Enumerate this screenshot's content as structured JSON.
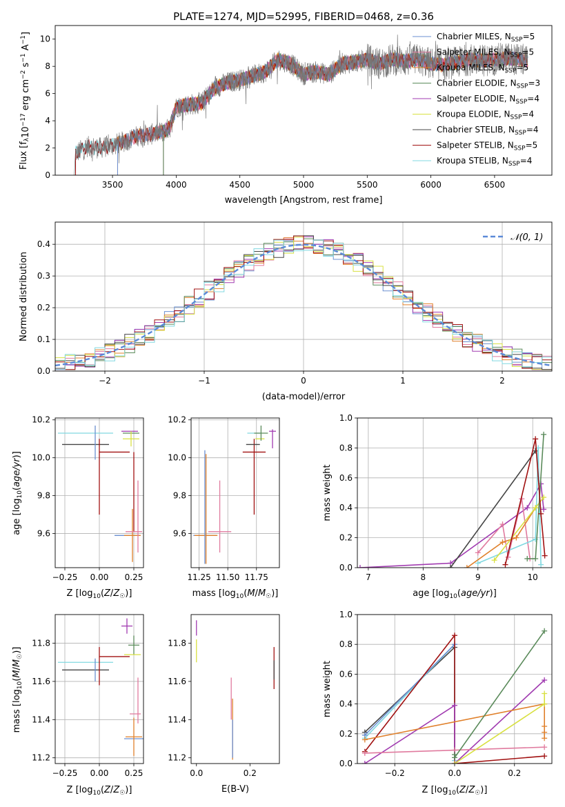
{
  "title": "PLATE=1274, MJD=52995, FIBERID=0468, z=0.36",
  "colors": {
    "chabrier_miles": "#6a8fd0",
    "salpeter_miles": "#e07a9e",
    "kroupa_miles": "#e0802a",
    "chabrier_elodie": "#5a8a5a",
    "salpeter_elodie": "#a03ab0",
    "kroupa_elodie": "#d8e040",
    "chabrier_stelib": "#444444",
    "salpeter_stelib": "#a01010",
    "kroupa_stelib": "#80d8e0",
    "normal": "#5b8ad8"
  },
  "chart_data": [
    {
      "type": "line",
      "panel": "spectrum",
      "xlabel": "wavelength [Angstrom, rest frame]",
      "ylabel": "Flux [f_λ10^-17 erg cm^-2 s^-1 A^-1]",
      "xlim": [
        3050,
        6950
      ],
      "ylim": [
        0,
        11
      ],
      "xticks": [
        3500,
        4000,
        4500,
        5000,
        5500,
        6000,
        6500
      ],
      "yticks": [
        0,
        2,
        4,
        6,
        8,
        10
      ],
      "grid": false,
      "legend_position": "top-right",
      "legend": [
        {
          "label": "Chabrier MILES, N_SSP=5",
          "color_key": "chabrier_miles"
        },
        {
          "label": "Salpeter MILES, N_SSP=5",
          "color_key": "salpeter_miles"
        },
        {
          "label": "Kroupa MILES, N_SSP=5",
          "color_key": "kroupa_miles"
        },
        {
          "label": "Chabrier ELODIE, N_SSP=3",
          "color_key": "chabrier_elodie"
        },
        {
          "label": "Salpeter ELODIE, N_SSP=4",
          "color_key": "salpeter_elodie"
        },
        {
          "label": "Kroupa ELODIE, N_SSP=4",
          "color_key": "kroupa_elodie"
        },
        {
          "label": "Chabrier STELIB, N_SSP=4",
          "color_key": "chabrier_stelib"
        },
        {
          "label": "Salpeter STELIB, N_SSP=5",
          "color_key": "salpeter_stelib"
        },
        {
          "label": "Kroupa STELIB, N_SSP=4",
          "color_key": "kroupa_stelib"
        }
      ],
      "continuum": {
        "x": [
          3200,
          3210,
          3300,
          3400,
          3500,
          3600,
          3700,
          3800,
          3900,
          3950,
          4000,
          4100,
          4200,
          4300,
          4400,
          4500,
          4600,
          4700,
          4800,
          4900,
          5000,
          5100,
          5200,
          5300,
          5400,
          5500,
          5600,
          5700,
          5800,
          5900,
          6000,
          6100,
          6200,
          6300,
          6400,
          6500,
          6600,
          6700,
          6760
        ],
        "y": [
          0,
          1.6,
          2.1,
          2.0,
          2.2,
          2.5,
          2.9,
          3.0,
          3.2,
          3.5,
          5.0,
          5.2,
          5.3,
          6.4,
          6.8,
          7.0,
          7.3,
          7.6,
          8.5,
          8.2,
          7.4,
          7.6,
          7.4,
          8.2,
          8.3,
          8.5,
          8.2,
          8.5,
          8.4,
          8.5,
          8.2,
          8.1,
          8.3,
          8.5,
          8.4,
          8.5,
          8.6,
          8.5,
          8.4
        ]
      },
      "model_starts": {
        "salpeter_miles": 3540,
        "kroupa_miles": 3540,
        "chabrier_miles": 3540,
        "chabrier_elodie": 3900,
        "salpeter_elodie": 3900,
        "kroupa_elodie": 3900
      }
    },
    {
      "type": "bar",
      "panel": "residual_histogram",
      "xlabel": "(data-model)/error",
      "ylabel": "Normed distribution",
      "xlim": [
        -2.5,
        2.5
      ],
      "ylim": [
        0,
        0.47
      ],
      "xticks": [
        -2,
        -1,
        0,
        1,
        2
      ],
      "yticks": [
        0.0,
        0.1,
        0.2,
        0.3,
        0.4
      ],
      "grid": true,
      "legend_position": "top-right",
      "legend": [
        {
          "label": "𝒩(0, 1)",
          "color_key": "normal",
          "style": "dashed"
        }
      ],
      "bin_width": 0.1,
      "bin_start": -2.5
    },
    {
      "type": "scatter",
      "panel": "age_vs_Z",
      "xlabel": "Z [log10(Z/Z☉)]",
      "ylabel": "age  [log10(age/yr)]",
      "xlim": [
        -0.32,
        0.32
      ],
      "ylim": [
        9.42,
        10.21
      ],
      "xticks": [
        -0.25,
        0.0,
        0.25
      ],
      "yticks": [
        9.6,
        9.8,
        10.0,
        10.2
      ],
      "grid": true,
      "points": [
        {
          "c": "kroupa_stelib",
          "x": -0.1,
          "xerr": 0.2,
          "y": 10.13,
          "yerr": 0.0
        },
        {
          "c": "chabrier_stelib",
          "x": -0.1,
          "xerr": 0.17,
          "y": 10.07,
          "yerr": 0.0
        },
        {
          "c": "chabrier_miles",
          "x": -0.03,
          "xerr": 0.0,
          "y": 10.08,
          "yerr": 0.09
        },
        {
          "c": "salpeter_stelib",
          "x": 0.0,
          "xerr": 0.0,
          "y": 9.9,
          "yerr": 0.2
        },
        {
          "c": "salpeter_stelib",
          "x": 0.11,
          "xerr": 0.11,
          "y": 10.03,
          "yerr": 0.0
        },
        {
          "c": "salpeter_elodie",
          "x": 0.22,
          "xerr": 0.06,
          "y": 10.14,
          "yerr": 0.0
        },
        {
          "c": "chabrier_elodie",
          "x": 0.23,
          "xerr": 0.06,
          "y": 10.13,
          "yerr": 0.0
        },
        {
          "c": "kroupa_elodie",
          "x": 0.23,
          "xerr": 0.06,
          "y": 10.1,
          "yerr": 0.04
        },
        {
          "c": "salpeter_stelib",
          "x": 0.25,
          "xerr": 0.0,
          "y": 9.82,
          "yerr": 0.21
        },
        {
          "c": "chabrier_miles",
          "x": 0.2,
          "xerr": 0.09,
          "y": 9.59,
          "yerr": 0.0
        },
        {
          "c": "kroupa_miles",
          "x": 0.24,
          "xerr": 0.06,
          "y": 9.59,
          "yerr": 0.14
        },
        {
          "c": "salpeter_miles",
          "x": 0.25,
          "xerr": 0.06,
          "y": 9.61,
          "yerr": 0.0
        },
        {
          "c": "salpeter_miles",
          "x": 0.28,
          "xerr": 0.0,
          "y": 9.69,
          "yerr": 0.19
        }
      ]
    },
    {
      "type": "scatter",
      "panel": "age_vs_mass",
      "xlabel": "mass [log10(M/M☉)]",
      "ylabel": "",
      "xlim": [
        11.18,
        11.95
      ],
      "ylim": [
        9.42,
        10.21
      ],
      "xticks": [
        11.25,
        11.5,
        11.75
      ],
      "yticks": [
        9.6,
        9.8,
        10.0,
        10.2
      ],
      "grid": true,
      "points": [
        {
          "c": "chabrier_miles",
          "x": 11.3,
          "xerr": 0.1,
          "y": 9.59,
          "yerr": 0.0
        },
        {
          "c": "kroupa_miles",
          "x": 11.31,
          "xerr": 0.1,
          "y": 9.59,
          "yerr": 0.0
        },
        {
          "c": "chabrier_miles",
          "x": 11.3,
          "xerr": 0.0,
          "y": 9.74,
          "yerr": 0.3
        },
        {
          "c": "kroupa_miles",
          "x": 11.31,
          "xerr": 0.0,
          "y": 9.73,
          "yerr": 0.29
        },
        {
          "c": "salpeter_miles",
          "x": 11.43,
          "xerr": 0.1,
          "y": 9.61,
          "yerr": 0.0
        },
        {
          "c": "salpeter_miles",
          "x": 11.43,
          "xerr": 0.0,
          "y": 9.69,
          "yerr": 0.19
        },
        {
          "c": "salpeter_stelib",
          "x": 11.73,
          "xerr": 0.1,
          "y": 10.03,
          "yerr": 0.0
        },
        {
          "c": "salpeter_stelib",
          "x": 11.73,
          "xerr": 0.0,
          "y": 9.9,
          "yerr": 0.2
        },
        {
          "c": "chabrier_stelib",
          "x": 11.72,
          "xerr": 0.06,
          "y": 10.07,
          "yerr": 0.0
        },
        {
          "c": "kroupa_stelib",
          "x": 11.73,
          "xerr": 0.06,
          "y": 10.13,
          "yerr": 0.0
        },
        {
          "c": "kroupa_elodie",
          "x": 11.78,
          "xerr": 0.04,
          "y": 10.1,
          "yerr": 0.0
        },
        {
          "c": "chabrier_elodie",
          "x": 11.79,
          "xerr": 0.06,
          "y": 10.13,
          "yerr": 0.04
        },
        {
          "c": "salpeter_elodie",
          "x": 11.89,
          "xerr": 0.03,
          "y": 10.14,
          "yerr": 0.0
        },
        {
          "c": "salpeter_elodie",
          "x": 11.89,
          "xerr": 0.0,
          "y": 10.1,
          "yerr": 0.05
        }
      ]
    },
    {
      "type": "line",
      "panel": "mass_weight_vs_age",
      "xlabel": "age  [log10(age/yr)]",
      "ylabel": "mass weight",
      "xlim": [
        6.8,
        10.35
      ],
      "ylim": [
        0,
        1.0
      ],
      "xticks": [
        7,
        8,
        9,
        10
      ],
      "yticks": [
        0.0,
        0.2,
        0.4,
        0.6,
        0.8,
        1.0
      ],
      "grid": true,
      "series": [
        {
          "c": "salpeter_elodie",
          "x": [
            6.85,
            8.5,
            9.9,
            10.15,
            10.2
          ],
          "y": [
            0.0,
            0.03,
            0.4,
            0.56,
            0.39
          ]
        },
        {
          "c": "chabrier_stelib",
          "x": [
            8.5,
            10.05
          ],
          "y": [
            0.0,
            0.78
          ]
        },
        {
          "c": "salpeter_miles",
          "x": [
            9.0,
            9.45,
            9.55,
            9.8,
            9.95
          ],
          "y": [
            0.1,
            0.29,
            0.07,
            0.46,
            0.06
          ]
        },
        {
          "c": "kroupa_miles",
          "x": [
            8.8,
            9.45,
            9.7,
            10.05
          ],
          "y": [
            0.0,
            0.17,
            0.2,
            0.4
          ]
        },
        {
          "c": "kroupa_stelib",
          "x": [
            9.0,
            10.05,
            10.1,
            10.15
          ],
          "y": [
            0.03,
            0.19,
            0.8,
            0.02
          ]
        },
        {
          "c": "kroupa_elodie",
          "x": [
            9.3,
            10.05,
            10.2
          ],
          "y": [
            0.05,
            0.4,
            0.47
          ]
        },
        {
          "c": "chabrier_elodie",
          "x": [
            9.9,
            10.05,
            10.2
          ],
          "y": [
            0.06,
            0.06,
            0.89
          ]
        },
        {
          "c": "salpeter_stelib",
          "x": [
            9.5,
            10.05,
            10.15,
            10.22
          ],
          "y": [
            0.02,
            0.86,
            0.36,
            0.08
          ]
        }
      ]
    },
    {
      "type": "scatter",
      "panel": "mass_vs_Z",
      "xlabel": "Z [log10(Z/Z☉)]",
      "ylabel": "mass [log10(M/M☉)]",
      "xlim": [
        -0.32,
        0.32
      ],
      "ylim": [
        11.17,
        11.95
      ],
      "xticks": [
        -0.25,
        0.0,
        0.25
      ],
      "yticks": [
        11.2,
        11.4,
        11.6,
        11.8
      ],
      "grid": true,
      "points": [
        {
          "c": "kroupa_stelib",
          "x": -0.1,
          "xerr": 0.2,
          "y": 11.7,
          "yerr": 0.0
        },
        {
          "c": "chabrier_stelib",
          "x": -0.1,
          "xerr": 0.17,
          "y": 11.66,
          "yerr": 0.0
        },
        {
          "c": "chabrier_miles",
          "x": -0.03,
          "xerr": 0.0,
          "y": 11.66,
          "yerr": 0.06
        },
        {
          "c": "salpeter_stelib",
          "x": 0.0,
          "xerr": 0.0,
          "y": 11.68,
          "yerr": 0.1
        },
        {
          "c": "salpeter_stelib",
          "x": 0.11,
          "xerr": 0.11,
          "y": 11.73,
          "yerr": 0.0
        },
        {
          "c": "salpeter_elodie",
          "x": 0.2,
          "xerr": 0.04,
          "y": 11.89,
          "yerr": 0.0
        },
        {
          "c": "salpeter_elodie",
          "x": 0.2,
          "xerr": 0.0,
          "y": 11.89,
          "yerr": 0.04
        },
        {
          "c": "chabrier_elodie",
          "x": 0.25,
          "xerr": 0.04,
          "y": 11.79,
          "yerr": 0.05
        },
        {
          "c": "kroupa_elodie",
          "x": 0.24,
          "xerr": 0.06,
          "y": 11.74,
          "yerr": 0.0
        },
        {
          "c": "salpeter_miles",
          "x": 0.26,
          "xerr": 0.04,
          "y": 11.43,
          "yerr": 0.0
        },
        {
          "c": "salpeter_miles",
          "x": 0.28,
          "xerr": 0.0,
          "y": 11.5,
          "yerr": 0.12
        },
        {
          "c": "chabrier_miles",
          "x": 0.25,
          "xerr": 0.07,
          "y": 11.3,
          "yerr": 0.0
        },
        {
          "c": "kroupa_miles",
          "x": 0.25,
          "xerr": 0.06,
          "y": 11.31,
          "yerr": 0.1
        }
      ]
    },
    {
      "type": "scatter",
      "panel": "mass_vs_EBV",
      "xlabel": "E(B-V)",
      "ylabel": "",
      "xlim": [
        -0.02,
        0.31
      ],
      "ylim": [
        11.17,
        11.95
      ],
      "xticks": [
        0.0,
        0.2
      ],
      "yticks": [
        11.2,
        11.4,
        11.6,
        11.8
      ],
      "grid": false,
      "points": [
        {
          "c": "salpeter_elodie",
          "x": 0.0,
          "xerr": 0.0,
          "y": 11.88,
          "yerr": 0.04
        },
        {
          "c": "kroupa_elodie",
          "x": 0.0,
          "xerr": 0.0,
          "y": 11.76,
          "yerr": 0.06
        },
        {
          "c": "salpeter_miles",
          "x": 0.13,
          "xerr": 0.0,
          "y": 11.51,
          "yerr": 0.11
        },
        {
          "c": "kroupa_miles",
          "x": 0.135,
          "xerr": 0.0,
          "y": 11.35,
          "yerr": 0.16
        },
        {
          "c": "chabrier_miles",
          "x": 0.135,
          "xerr": 0.0,
          "y": 11.3,
          "yerr": 0.1
        },
        {
          "c": "salpeter_stelib",
          "x": 0.29,
          "xerr": 0.0,
          "y": 11.67,
          "yerr": 0.11
        },
        {
          "c": "chabrier_stelib",
          "x": 0.29,
          "xerr": 0.0,
          "y": 11.66,
          "yerr": 0.05
        }
      ]
    },
    {
      "type": "line",
      "panel": "mass_weight_vs_Z",
      "xlabel": "Z [log10(Z/Z☉)]",
      "ylabel": "mass weight",
      "xlim": [
        -0.325,
        0.325
      ],
      "ylim": [
        0,
        1.0
      ],
      "xticks": [
        -0.2,
        0.0,
        0.2
      ],
      "yticks": [
        0.0,
        0.2,
        0.4,
        0.6,
        0.8,
        1.0
      ],
      "grid": true,
      "series": [
        {
          "c": "chabrier_stelib",
          "x": [
            -0.3,
            0.0,
            0.0
          ],
          "y": [
            0.21,
            0.78,
            0.0
          ]
        },
        {
          "c": "kroupa_stelib",
          "x": [
            -0.3,
            0.0,
            0.0
          ],
          "y": [
            0.17,
            0.8,
            0.02
          ]
        },
        {
          "c": "chabrier_miles",
          "x": [
            -0.3,
            0.0
          ],
          "y": [
            0.19,
            0.8
          ]
        },
        {
          "c": "salpeter_stelib",
          "x": [
            -0.3,
            0.0,
            0.0,
            0.3
          ],
          "y": [
            0.08,
            0.86,
            0.0,
            0.05
          ]
        },
        {
          "c": "salpeter_elodie",
          "x": [
            -0.3,
            0.0,
            0.0,
            0.3
          ],
          "y": [
            0.0,
            0.39,
            0.0,
            0.56
          ]
        },
        {
          "c": "kroupa_miles",
          "x": [
            -0.3,
            0.3,
            0.3,
            0.3,
            0.3
          ],
          "y": [
            0.16,
            0.4,
            0.25,
            0.21,
            0.17
          ]
        },
        {
          "c": "salpeter_miles",
          "x": [
            -0.3,
            0.0,
            0.3
          ],
          "y": [
            0.07,
            0.09,
            0.11
          ]
        },
        {
          "c": "kroupa_elodie",
          "x": [
            0.0,
            0.3,
            0.3
          ],
          "y": [
            0.0,
            0.4,
            0.47
          ]
        },
        {
          "c": "chabrier_elodie",
          "x": [
            0.0,
            0.0,
            0.3
          ],
          "y": [
            0.06,
            0.04,
            0.89
          ]
        }
      ]
    }
  ]
}
